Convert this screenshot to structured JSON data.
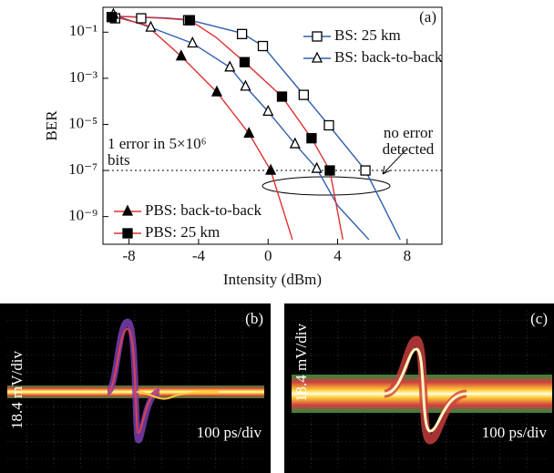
{
  "chart_data": {
    "type": "line",
    "panel_label": "(a)",
    "xlabel": "Intensity (dBm)",
    "ylabel": "BER",
    "xlim": [
      -9.5,
      10
    ],
    "xticks": [
      -8,
      -4,
      0,
      4,
      8
    ],
    "ylim": [
      6.3e-11,
      1.2
    ],
    "log_y": true,
    "yticks": [
      {
        "value": 0.1,
        "label": "10⁻¹"
      },
      {
        "value": 0.001,
        "label": "10⁻³"
      },
      {
        "value": 1e-05,
        "label": "10⁻⁵"
      },
      {
        "value": 1e-07,
        "label": "10⁻⁷"
      },
      {
        "value": 1e-09,
        "label": "10⁻⁹"
      }
    ],
    "threshold": 1e-07,
    "threshold_label": [
      "1 error in 5×10⁶",
      "bits"
    ],
    "annotation": [
      "no error",
      "detected"
    ],
    "series": [
      {
        "name": "BS: 25 km",
        "color": "#2f5fb0",
        "marker": "open-square",
        "legend_loc": "upper right",
        "x": [
          -8.8,
          -7.3,
          -4.6,
          -1.5,
          -0.3,
          2.05,
          3.5,
          5.6
        ],
        "values": [
          0.4,
          0.4,
          0.33,
          0.083,
          0.025,
          0.00019,
          9.1e-06,
          1e-07
        ],
        "fit": {
          "x": [
            -9,
            -6,
            -4.6,
            -1.5,
            -0.3,
            2.05,
            3.5,
            5.6,
            7.6
          ],
          "values": [
            0.5,
            0.42,
            0.35,
            0.09,
            0.025,
            0.00019,
            9e-06,
            1e-07,
            1e-10
          ]
        }
      },
      {
        "name": "BS: back-to-back",
        "color": "#2f5fb0",
        "marker": "open-triangle",
        "legend_loc": "upper right",
        "x": [
          -8.9,
          -6.75,
          -4.35,
          -2.2,
          -1.3,
          0,
          1.55,
          2.8
        ],
        "values": [
          0.58,
          0.16,
          0.033,
          0.003,
          0.00044,
          3.6e-05,
          1.4e-06,
          1.2e-07
        ],
        "fit": {
          "x": [
            -9,
            -6.75,
            -4.35,
            -2.2,
            -1.3,
            0,
            1.55,
            2.8,
            4,
            5.8
          ],
          "values": [
            0.6,
            0.16,
            0.033,
            0.003,
            0.00044,
            3.6e-05,
            1.4e-06,
            1.2e-07,
            3e-09,
            1e-10
          ]
        }
      },
      {
        "name": "PBS: back-to-back",
        "color": "#e03030",
        "marker": "filled-triangle",
        "legend_loc": "lower left",
        "x": [
          -5,
          -2.95,
          -1.1,
          0.15
        ],
        "values": [
          0.009,
          0.00025,
          4e-06,
          1e-07
        ],
        "fit": {
          "x": [
            -9,
            -7,
            -5,
            -2.95,
            -1.1,
            0.15,
            1.4
          ],
          "values": [
            0.5,
            0.2,
            0.009,
            0.00025,
            4e-06,
            1e-07,
            1e-10
          ]
        }
      },
      {
        "name": "PBS: 25 km",
        "color": "#e03030",
        "marker": "filled-square",
        "legend_loc": "lower left",
        "x": [
          -9,
          -4.5,
          -1.35,
          0.8,
          2.5,
          3.55
        ],
        "values": [
          0.45,
          0.33,
          0.005,
          0.00016,
          2.5e-06,
          1e-07
        ],
        "fit": {
          "x": [
            -9,
            -6,
            -4.5,
            -3,
            -1.35,
            0.8,
            2.5,
            3.55,
            4.3
          ],
          "values": [
            0.5,
            0.4,
            0.33,
            0.06,
            0.005,
            0.00016,
            2.5e-06,
            1e-07,
            1e-10
          ]
        }
      }
    ]
  },
  "panels": [
    {
      "label": "(b)",
      "y_scale": "18.4 mV/div",
      "x_scale": "100 ps/div"
    },
    {
      "label": "(c)",
      "y_scale": "18.4 mV/div",
      "x_scale": "100 ps/div"
    }
  ]
}
